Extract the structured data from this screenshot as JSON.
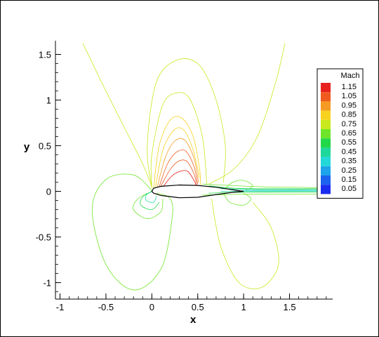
{
  "chart_data": {
    "type": "contour",
    "xlabel": "x",
    "ylabel": "y",
    "xlim": [
      -1.05,
      1.97
    ],
    "ylim": [
      -1.18,
      1.65
    ],
    "x_ticks": [
      {
        "value": -1,
        "label": "-1"
      },
      {
        "value": -0.5,
        "label": "-0.5"
      },
      {
        "value": 0,
        "label": "0"
      },
      {
        "value": 0.5,
        "label": "0.5"
      },
      {
        "value": 1,
        "label": "1"
      },
      {
        "value": 1.5,
        "label": "1.5"
      }
    ],
    "y_ticks": [
      {
        "value": -1,
        "label": "-1"
      },
      {
        "value": -0.5,
        "label": "-0.5"
      },
      {
        "value": 0,
        "label": "0"
      },
      {
        "value": 0.5,
        "label": "0.5"
      },
      {
        "value": 1,
        "label": "1"
      },
      {
        "value": 1.5,
        "label": "1.5"
      }
    ],
    "legend": {
      "title": "Mach",
      "placement": "right",
      "levels": [
        {
          "value": 1.15,
          "label": "1.15",
          "color": "#e8201e"
        },
        {
          "value": 1.05,
          "label": "1.05",
          "color": "#ef5a1f"
        },
        {
          "value": 0.95,
          "label": "0.95",
          "color": "#f59a22"
        },
        {
          "value": 0.85,
          "label": "0.85",
          "color": "#f7d21f"
        },
        {
          "value": 0.75,
          "label": "0.75",
          "color": "#c9e91e"
        },
        {
          "value": 0.65,
          "label": "0.65",
          "color": "#6fe52a"
        },
        {
          "value": 0.55,
          "label": "0.55",
          "color": "#20d84a"
        },
        {
          "value": 0.45,
          "label": "0.45",
          "color": "#1ed89b"
        },
        {
          "value": 0.35,
          "label": "0.35",
          "color": "#22d8d8"
        },
        {
          "value": 0.25,
          "label": "0.25",
          "color": "#1ea4ea"
        },
        {
          "value": 0.15,
          "label": "0.15",
          "color": "#1d62ee"
        },
        {
          "value": 0.05,
          "label": "0.05",
          "color": "#1c2cef"
        }
      ]
    },
    "airfoil": {
      "leading_edge_x": 0,
      "trailing_edge_x": 1,
      "upper": [
        [
          0,
          0
        ],
        [
          0.02,
          0.035
        ],
        [
          0.1,
          0.055
        ],
        [
          0.3,
          0.07
        ],
        [
          0.5,
          0.065
        ],
        [
          0.7,
          0.045
        ],
        [
          0.9,
          0.015
        ],
        [
          1,
          0.0
        ]
      ],
      "lower": [
        [
          0,
          0
        ],
        [
          0.02,
          -0.02
        ],
        [
          0.1,
          -0.045
        ],
        [
          0.3,
          -0.07
        ],
        [
          0.5,
          -0.065
        ],
        [
          0.7,
          -0.035
        ],
        [
          0.9,
          -0.008
        ],
        [
          1,
          0.0
        ]
      ]
    },
    "contours": [
      {
        "level": 0.75,
        "points": [
          [
            -0.75,
            1.62
          ],
          [
            -0.55,
            1.2
          ],
          [
            -0.3,
            0.7
          ],
          [
            -0.1,
            0.3
          ],
          [
            0.0,
            0.05
          ]
        ]
      },
      {
        "level": 0.75,
        "points": [
          [
            1.45,
            1.62
          ],
          [
            1.35,
            1.2
          ],
          [
            1.15,
            0.6
          ],
          [
            0.9,
            0.25
          ],
          [
            0.62,
            0.08
          ]
        ]
      },
      {
        "level": 0.75,
        "points": [
          [
            0.0,
            0.04
          ],
          [
            -0.05,
            0.5
          ],
          [
            0.05,
            1.2
          ],
          [
            0.28,
            1.44
          ],
          [
            0.52,
            1.38
          ],
          [
            0.7,
            1.0
          ],
          [
            0.8,
            0.5
          ],
          [
            0.78,
            0.1
          ]
        ]
      },
      {
        "level": 0.75,
        "points": [
          [
            0.0,
            0.03
          ],
          [
            0.0,
            0.4
          ],
          [
            0.12,
            0.95
          ],
          [
            0.28,
            1.08
          ],
          [
            0.42,
            1.0
          ],
          [
            0.55,
            0.6
          ],
          [
            0.6,
            0.07
          ]
        ]
      },
      {
        "level": 0.85,
        "points": [
          [
            0.02,
            0.04
          ],
          [
            0.08,
            0.5
          ],
          [
            0.2,
            0.78
          ],
          [
            0.33,
            0.8
          ],
          [
            0.45,
            0.6
          ],
          [
            0.52,
            0.25
          ],
          [
            0.53,
            0.07
          ]
        ]
      },
      {
        "level": 0.85,
        "points": [
          [
            0.04,
            0.05
          ],
          [
            0.12,
            0.45
          ],
          [
            0.24,
            0.67
          ],
          [
            0.35,
            0.67
          ],
          [
            0.45,
            0.45
          ],
          [
            0.52,
            0.15
          ]
        ]
      },
      {
        "level": 0.95,
        "points": [
          [
            0.06,
            0.05
          ],
          [
            0.15,
            0.38
          ],
          [
            0.25,
            0.55
          ],
          [
            0.36,
            0.56
          ],
          [
            0.46,
            0.36
          ],
          [
            0.51,
            0.1
          ]
        ]
      },
      {
        "level": 1.05,
        "points": [
          [
            0.08,
            0.05
          ],
          [
            0.17,
            0.3
          ],
          [
            0.27,
            0.43
          ],
          [
            0.37,
            0.44
          ],
          [
            0.46,
            0.27
          ],
          [
            0.5,
            0.08
          ]
        ]
      },
      {
        "level": 1.05,
        "points": [
          [
            0.1,
            0.06
          ],
          [
            0.2,
            0.24
          ],
          [
            0.29,
            0.33
          ],
          [
            0.38,
            0.33
          ],
          [
            0.46,
            0.19
          ],
          [
            0.49,
            0.07
          ]
        ]
      },
      {
        "level": 1.15,
        "points": [
          [
            0.13,
            0.06
          ],
          [
            0.22,
            0.17
          ],
          [
            0.31,
            0.22
          ],
          [
            0.39,
            0.22
          ],
          [
            0.46,
            0.12
          ],
          [
            0.48,
            0.07
          ]
        ]
      },
      {
        "level": 0.65,
        "points": [
          [
            0.0,
            0.01
          ],
          [
            -0.2,
            0.18
          ],
          [
            -0.5,
            0.13
          ],
          [
            -0.65,
            -0.2
          ],
          [
            -0.5,
            -0.8
          ],
          [
            -0.2,
            -1.08
          ],
          [
            0.1,
            -0.85
          ],
          [
            0.22,
            -0.3
          ],
          [
            0.2,
            -0.08
          ],
          [
            0.05,
            -0.02
          ]
        ]
      },
      {
        "level": 0.65,
        "points": [
          [
            0.0,
            0.0
          ],
          [
            -0.15,
            -0.08
          ],
          [
            -0.2,
            -0.2
          ],
          [
            -0.05,
            -0.3
          ],
          [
            0.1,
            -0.22
          ],
          [
            0.12,
            -0.08
          ]
        ]
      },
      {
        "level": 0.55,
        "points": [
          [
            0.0,
            0.0
          ],
          [
            -0.1,
            -0.06
          ],
          [
            -0.12,
            -0.15
          ],
          [
            0.0,
            -0.2
          ],
          [
            0.08,
            -0.12
          ]
        ]
      },
      {
        "level": 0.45,
        "points": [
          [
            0.0,
            0.0
          ],
          [
            -0.06,
            -0.04
          ],
          [
            -0.06,
            -0.1
          ],
          [
            0.02,
            -0.12
          ],
          [
            0.05,
            -0.05
          ]
        ]
      },
      {
        "level": 0.75,
        "points": [
          [
            0.65,
            -0.08
          ],
          [
            0.75,
            -0.6
          ],
          [
            0.95,
            -1.0
          ],
          [
            1.2,
            -1.05
          ],
          [
            1.38,
            -0.8
          ],
          [
            1.3,
            -0.4
          ],
          [
            1.1,
            -0.12
          ]
        ]
      },
      {
        "level": 0.65,
        "points": [
          [
            0.78,
            -0.02
          ],
          [
            0.85,
            -0.12
          ],
          [
            1.0,
            -0.15
          ],
          [
            1.08,
            -0.08
          ],
          [
            1.0,
            -0.02
          ]
        ]
      },
      {
        "level": 0.65,
        "points": [
          [
            0.8,
            0.03
          ],
          [
            0.88,
            0.1
          ],
          [
            1.0,
            0.12
          ],
          [
            1.1,
            0.06
          ],
          [
            1.02,
            0.01
          ]
        ]
      },
      {
        "level": 0.55,
        "points": [
          [
            0.62,
            0.06
          ],
          [
            1.0,
            0.03
          ],
          [
            1.97,
            0.03
          ]
        ]
      },
      {
        "level": 0.55,
        "points": [
          [
            0.62,
            -0.02
          ],
          [
            1.0,
            -0.01
          ],
          [
            1.97,
            -0.01
          ]
        ]
      },
      {
        "level": 0.45,
        "points": [
          [
            0.75,
            0.03
          ],
          [
            1.2,
            0.02
          ],
          [
            1.97,
            0.02
          ]
        ]
      },
      {
        "level": 0.45,
        "points": [
          [
            0.75,
            0.0
          ],
          [
            1.2,
            0.0
          ],
          [
            1.97,
            0.0
          ]
        ]
      },
      {
        "level": 0.65,
        "points": [
          [
            0.55,
            0.08
          ],
          [
            1.2,
            0.05
          ],
          [
            1.97,
            0.04
          ]
        ]
      },
      {
        "level": 0.65,
        "points": [
          [
            0.55,
            -0.04
          ],
          [
            1.2,
            -0.03
          ],
          [
            1.97,
            -0.03
          ]
        ]
      },
      {
        "level": 0.35,
        "points": [
          [
            0.98,
            0.01
          ],
          [
            1.5,
            0.01
          ],
          [
            1.97,
            0.01
          ]
        ]
      }
    ]
  }
}
